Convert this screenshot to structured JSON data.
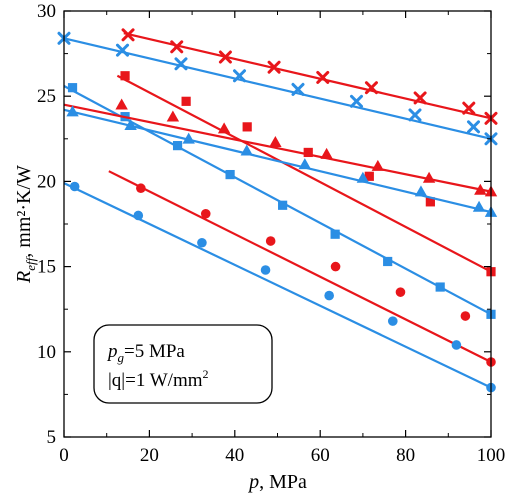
{
  "chart_data": {
    "type": "line",
    "x_axis": {
      "label_italic": "p",
      "label_rest": ", MPa",
      "range": [
        0,
        100
      ],
      "ticks": [
        0,
        20,
        40,
        60,
        80,
        100
      ],
      "tick_labels": [
        "0",
        "20",
        "40",
        "60",
        "80",
        "100"
      ]
    },
    "y_axis": {
      "label_italic": "R",
      "label_sub": "eff",
      "label_rest": ", mm²·K/W",
      "range": [
        5,
        30
      ],
      "ticks": [
        5,
        10,
        15,
        20,
        25,
        30
      ],
      "tick_labels": [
        "5",
        "10",
        "15",
        "20",
        "25",
        "30"
      ]
    },
    "grid": false,
    "colors": {
      "red": "#e8161b",
      "blue": "#2b8ee4"
    },
    "series": [
      {
        "color": "red",
        "marker": "x",
        "x": [
          15,
          26.4,
          37.8,
          49.2,
          60.6,
          72,
          83.4,
          94.8
        ],
        "y": [
          28.6,
          27.9,
          27.3,
          26.7,
          26.1,
          25.5,
          24.9,
          24.3
        ],
        "line": [
          [
            14,
            28.7
          ],
          [
            100,
            23.7
          ]
        ],
        "end": [
          100,
          23.7
        ]
      },
      {
        "color": "blue",
        "marker": "x",
        "x": [
          0,
          13.7,
          27.4,
          41.1,
          54.8,
          68.5,
          82.2,
          95.9
        ],
        "y": [
          28.4,
          27.7,
          26.9,
          26.2,
          25.4,
          24.7,
          23.9,
          23.2
        ],
        "line": [
          [
            0,
            28.4
          ],
          [
            100,
            22.5
          ]
        ],
        "end": [
          100,
          22.5
        ]
      },
      {
        "color": "red",
        "marker": "square",
        "x": [
          14.3,
          28.6,
          42.9,
          57.2,
          71.5,
          85.8
        ],
        "y": [
          26.2,
          24.7,
          23.2,
          21.7,
          20.3,
          18.8
        ],
        "line": [
          [
            12.5,
            26.2
          ],
          [
            100,
            14.7
          ]
        ],
        "end": [
          100,
          14.7
        ]
      },
      {
        "color": "blue",
        "marker": "square",
        "x": [
          2,
          14.3,
          26.6,
          38.9,
          51.2,
          63.5,
          75.8,
          88.1
        ],
        "y": [
          25.5,
          23.8,
          22.1,
          20.4,
          18.6,
          16.9,
          15.3,
          13.8
        ],
        "line": [
          [
            0,
            25.6
          ],
          [
            100,
            12.2
          ]
        ],
        "end": [
          100,
          12.2
        ]
      },
      {
        "color": "red",
        "marker": "triangle",
        "x": [
          13.5,
          25.5,
          37.5,
          49.5,
          61.5,
          73.5,
          85.5,
          97.5
        ],
        "y": [
          24.5,
          23.8,
          23.1,
          22.3,
          21.6,
          20.9,
          20.2,
          19.5
        ],
        "line": [
          [
            0,
            24.5
          ],
          [
            100,
            19.4
          ]
        ],
        "end": [
          100,
          19.4
        ]
      },
      {
        "color": "blue",
        "marker": "triangle",
        "x": [
          2,
          15.6,
          29.2,
          42.8,
          56.4,
          70,
          83.6,
          97.2
        ],
        "y": [
          24.1,
          23.3,
          22.5,
          21.8,
          21.0,
          20.2,
          19.4,
          18.5
        ],
        "line": [
          [
            0,
            24.2
          ],
          [
            100,
            18.2
          ]
        ],
        "end": [
          100,
          18.2
        ]
      },
      {
        "color": "red",
        "marker": "circle",
        "x": [
          18,
          33.2,
          48.4,
          63.6,
          78.8,
          94
        ],
        "y": [
          19.6,
          18.1,
          16.5,
          15.0,
          13.5,
          12.1
        ],
        "line": [
          [
            10.5,
            20.6
          ],
          [
            100,
            9.4
          ]
        ],
        "end": [
          100,
          9.4
        ]
      },
      {
        "color": "blue",
        "marker": "circle",
        "x": [
          2.5,
          17.4,
          32.3,
          47.2,
          62.1,
          77,
          91.9
        ],
        "y": [
          19.7,
          18.0,
          16.4,
          14.8,
          13.3,
          11.8,
          10.4
        ],
        "line": [
          [
            0,
            19.9
          ],
          [
            100,
            7.9
          ]
        ],
        "end": [
          100,
          7.9
        ]
      }
    ],
    "annotation": {
      "line1_italic": "p",
      "line1_sub": "g",
      "line1_rest": "=5 MPa",
      "line2_text": "|q|=1 W/mm",
      "line2_sup": "2"
    }
  }
}
